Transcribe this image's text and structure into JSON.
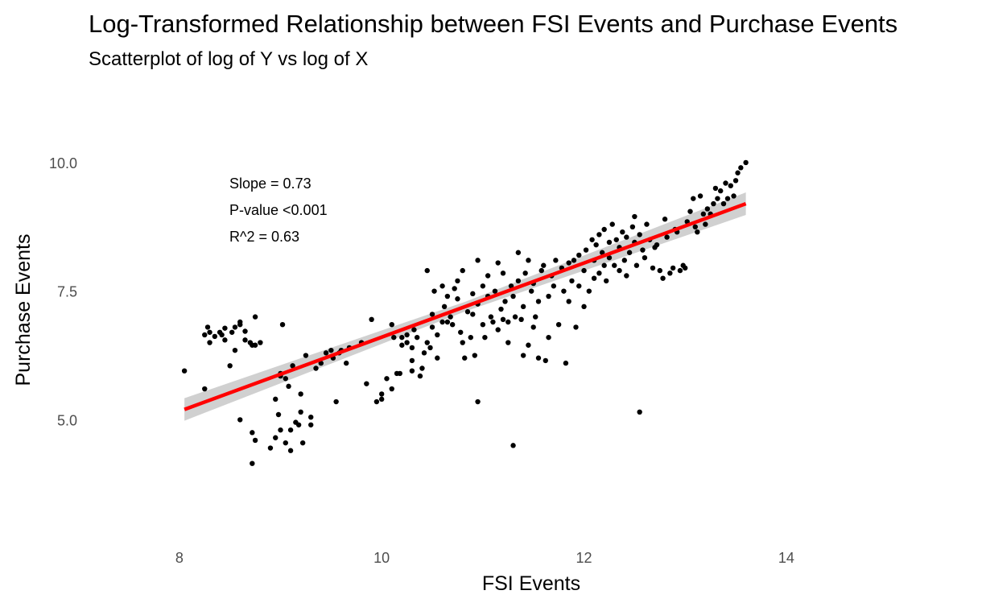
{
  "chart_data": {
    "type": "scatter",
    "title": "Log-Transformed Relationship between FSI Events and Purchase Events",
    "subtitle": "Scatterplot of log of Y vs log of X",
    "xlabel": "FSI Events",
    "ylabel": "Purchase Events",
    "xlim": [
      7.5,
      14.9
    ],
    "ylim": [
      3.3,
      10.5
    ],
    "xticks": [
      8,
      10,
      12,
      14
    ],
    "xtick_labels": [
      "8",
      "10",
      "12",
      "14"
    ],
    "yticks": [
      5.0,
      7.5,
      10.0
    ],
    "ytick_labels": [
      "5.0",
      "7.5",
      "10.0"
    ],
    "annotations": [
      "Slope = 0.73",
      "P-value <0.001",
      "R^2 = 0.63"
    ],
    "fit": {
      "x": [
        8.05,
        13.6
      ],
      "y": [
        5.2,
        9.2
      ],
      "color": "#ff0000",
      "band_color": "#c8c8c8"
    },
    "point_color": "#000000",
    "points": [
      [
        8.05,
        5.95
      ],
      [
        8.25,
        5.6
      ],
      [
        8.25,
        6.65
      ],
      [
        8.28,
        6.8
      ],
      [
        8.3,
        6.5
      ],
      [
        8.3,
        6.7
      ],
      [
        8.35,
        6.62
      ],
      [
        8.4,
        6.7
      ],
      [
        8.45,
        6.55
      ],
      [
        8.42,
        6.65
      ],
      [
        8.45,
        6.78
      ],
      [
        8.5,
        6.05
      ],
      [
        8.52,
        6.7
      ],
      [
        8.55,
        6.35
      ],
      [
        8.55,
        6.8
      ],
      [
        8.6,
        6.85
      ],
      [
        8.6,
        6.9
      ],
      [
        8.65,
        6.55
      ],
      [
        8.65,
        6.72
      ],
      [
        8.6,
        5.0
      ],
      [
        8.7,
        6.5
      ],
      [
        8.72,
        6.45
      ],
      [
        8.75,
        6.45
      ],
      [
        8.75,
        4.6
      ],
      [
        8.72,
        4.75
      ],
      [
        8.72,
        4.15
      ],
      [
        8.75,
        7.0
      ],
      [
        8.8,
        6.5
      ],
      [
        8.9,
        4.45
      ],
      [
        8.95,
        4.65
      ],
      [
        8.95,
        5.4
      ],
      [
        8.98,
        5.1
      ],
      [
        9.0,
        4.8
      ],
      [
        9.0,
        5.85
      ],
      [
        9.0,
        5.9
      ],
      [
        9.02,
        6.85
      ],
      [
        9.05,
        4.55
      ],
      [
        9.05,
        5.8
      ],
      [
        9.08,
        5.65
      ],
      [
        9.1,
        4.4
      ],
      [
        9.1,
        4.8
      ],
      [
        9.12,
        6.05
      ],
      [
        9.15,
        4.95
      ],
      [
        9.18,
        4.9
      ],
      [
        9.2,
        5.15
      ],
      [
        9.2,
        5.5
      ],
      [
        9.22,
        4.55
      ],
      [
        9.25,
        6.25
      ],
      [
        9.3,
        4.9
      ],
      [
        9.3,
        5.05
      ],
      [
        9.35,
        6.0
      ],
      [
        9.4,
        6.1
      ],
      [
        9.45,
        6.3
      ],
      [
        9.5,
        6.35
      ],
      [
        9.52,
        6.2
      ],
      [
        9.55,
        5.35
      ],
      [
        9.58,
        6.3
      ],
      [
        9.6,
        6.35
      ],
      [
        9.65,
        6.1
      ],
      [
        9.68,
        6.4
      ],
      [
        9.8,
        6.5
      ],
      [
        9.85,
        5.7
      ],
      [
        9.9,
        6.95
      ],
      [
        9.95,
        5.35
      ],
      [
        10.0,
        5.4
      ],
      [
        10.0,
        5.5
      ],
      [
        10.05,
        5.8
      ],
      [
        10.1,
        5.6
      ],
      [
        10.12,
        6.6
      ],
      [
        10.15,
        5.9
      ],
      [
        10.18,
        5.9
      ],
      [
        10.2,
        6.45
      ],
      [
        10.2,
        6.6
      ],
      [
        10.25,
        6.5
      ],
      [
        10.25,
        6.65
      ],
      [
        10.3,
        6.15
      ],
      [
        10.3,
        6.4
      ],
      [
        10.32,
        6.75
      ],
      [
        10.35,
        6.6
      ],
      [
        10.38,
        5.85
      ],
      [
        10.4,
        6.0
      ],
      [
        10.42,
        6.3
      ],
      [
        10.45,
        6.5
      ],
      [
        10.48,
        6.4
      ],
      [
        10.5,
        6.8
      ],
      [
        10.5,
        7.05
      ],
      [
        10.52,
        7.5
      ],
      [
        10.55,
        6.2
      ],
      [
        10.55,
        6.65
      ],
      [
        10.6,
        6.9
      ],
      [
        10.6,
        7.6
      ],
      [
        10.62,
        7.2
      ],
      [
        10.65,
        6.9
      ],
      [
        10.65,
        7.4
      ],
      [
        10.68,
        7.0
      ],
      [
        10.7,
        6.85
      ],
      [
        10.72,
        7.55
      ],
      [
        10.75,
        7.7
      ],
      [
        10.75,
        7.35
      ],
      [
        10.78,
        6.7
      ],
      [
        10.8,
        6.5
      ],
      [
        10.8,
        7.9
      ],
      [
        10.82,
        6.2
      ],
      [
        10.85,
        7.1
      ],
      [
        10.88,
        6.6
      ],
      [
        10.9,
        7.05
      ],
      [
        10.9,
        7.45
      ],
      [
        10.92,
        6.25
      ],
      [
        10.95,
        7.25
      ],
      [
        10.95,
        8.1
      ],
      [
        11.0,
        6.85
      ],
      [
        11.0,
        7.6
      ],
      [
        11.02,
        6.6
      ],
      [
        11.05,
        7.4
      ],
      [
        11.05,
        7.8
      ],
      [
        11.08,
        7.0
      ],
      [
        11.1,
        6.9
      ],
      [
        11.12,
        7.5
      ],
      [
        11.15,
        6.75
      ],
      [
        11.15,
        8.05
      ],
      [
        11.18,
        7.15
      ],
      [
        11.2,
        6.95
      ],
      [
        11.2,
        7.85
      ],
      [
        11.22,
        7.3
      ],
      [
        11.25,
        6.9
      ],
      [
        11.25,
        6.5
      ],
      [
        11.28,
        7.6
      ],
      [
        11.3,
        7.4
      ],
      [
        11.32,
        7.0
      ],
      [
        11.35,
        7.7
      ],
      [
        11.35,
        8.25
      ],
      [
        11.38,
        6.95
      ],
      [
        11.4,
        7.2
      ],
      [
        11.42,
        7.85
      ],
      [
        11.45,
        8.1
      ],
      [
        11.45,
        6.45
      ],
      [
        11.48,
        7.5
      ],
      [
        11.5,
        7.65
      ],
      [
        11.52,
        7.0
      ],
      [
        11.55,
        6.2
      ],
      [
        11.55,
        7.3
      ],
      [
        11.58,
        7.9
      ],
      [
        11.6,
        8.0
      ],
      [
        11.62,
        6.15
      ],
      [
        11.65,
        7.4
      ],
      [
        11.65,
        6.6
      ],
      [
        11.68,
        7.8
      ],
      [
        11.7,
        7.6
      ],
      [
        11.72,
        8.1
      ],
      [
        11.75,
        6.85
      ],
      [
        11.78,
        7.95
      ],
      [
        11.8,
        7.5
      ],
      [
        11.82,
        6.1
      ],
      [
        11.85,
        8.05
      ],
      [
        11.85,
        7.3
      ],
      [
        11.88,
        7.7
      ],
      [
        11.9,
        8.1
      ],
      [
        11.92,
        6.8
      ],
      [
        11.95,
        8.2
      ],
      [
        11.95,
        7.6
      ],
      [
        12.0,
        7.9
      ],
      [
        12.0,
        7.2
      ],
      [
        12.02,
        8.3
      ],
      [
        12.05,
        7.5
      ],
      [
        12.08,
        8.5
      ],
      [
        12.1,
        8.1
      ],
      [
        12.1,
        7.75
      ],
      [
        12.12,
        8.4
      ],
      [
        12.15,
        7.85
      ],
      [
        12.15,
        8.6
      ],
      [
        12.18,
        8.25
      ],
      [
        12.2,
        8.0
      ],
      [
        12.2,
        8.7
      ],
      [
        12.22,
        7.7
      ],
      [
        12.25,
        8.45
      ],
      [
        12.25,
        8.15
      ],
      [
        12.28,
        8.8
      ],
      [
        12.3,
        8.0
      ],
      [
        12.32,
        8.5
      ],
      [
        12.35,
        7.9
      ],
      [
        12.35,
        8.35
      ],
      [
        12.38,
        8.65
      ],
      [
        12.4,
        8.1
      ],
      [
        12.42,
        7.8
      ],
      [
        12.42,
        8.55
      ],
      [
        12.45,
        8.25
      ],
      [
        12.48,
        8.75
      ],
      [
        12.5,
        8.45
      ],
      [
        12.5,
        8.95
      ],
      [
        12.52,
        8.0
      ],
      [
        12.55,
        8.6
      ],
      [
        12.55,
        5.15
      ],
      [
        12.58,
        8.3
      ],
      [
        12.6,
        8.15
      ],
      [
        12.62,
        8.8
      ],
      [
        12.65,
        8.5
      ],
      [
        12.68,
        7.95
      ],
      [
        12.7,
        8.35
      ],
      [
        12.72,
        8.4
      ],
      [
        12.75,
        7.9
      ],
      [
        12.78,
        7.75
      ],
      [
        12.8,
        8.9
      ],
      [
        12.82,
        8.55
      ],
      [
        12.85,
        7.85
      ],
      [
        12.88,
        7.95
      ],
      [
        12.9,
        8.7
      ],
      [
        12.92,
        8.65
      ],
      [
        12.95,
        7.9
      ],
      [
        12.98,
        8.0
      ],
      [
        13.0,
        7.95
      ],
      [
        13.02,
        8.85
      ],
      [
        13.05,
        9.05
      ],
      [
        13.08,
        9.3
      ],
      [
        13.1,
        8.75
      ],
      [
        13.12,
        8.65
      ],
      [
        13.15,
        9.35
      ],
      [
        13.18,
        9.0
      ],
      [
        13.2,
        8.8
      ],
      [
        13.22,
        9.1
      ],
      [
        13.25,
        9.0
      ],
      [
        13.28,
        9.2
      ],
      [
        13.3,
        9.5
      ],
      [
        13.32,
        9.3
      ],
      [
        13.35,
        9.45
      ],
      [
        13.38,
        9.2
      ],
      [
        13.4,
        9.6
      ],
      [
        13.42,
        9.3
      ],
      [
        13.45,
        9.55
      ],
      [
        13.48,
        9.35
      ],
      [
        13.5,
        9.65
      ],
      [
        13.52,
        9.8
      ],
      [
        13.55,
        9.9
      ],
      [
        13.6,
        10.0
      ],
      [
        11.3,
        4.5
      ],
      [
        10.95,
        5.35
      ],
      [
        10.45,
        7.9
      ],
      [
        10.3,
        5.95
      ],
      [
        11.4,
        6.25
      ],
      [
        11.5,
        6.8
      ],
      [
        10.1,
        6.85
      ]
    ]
  }
}
